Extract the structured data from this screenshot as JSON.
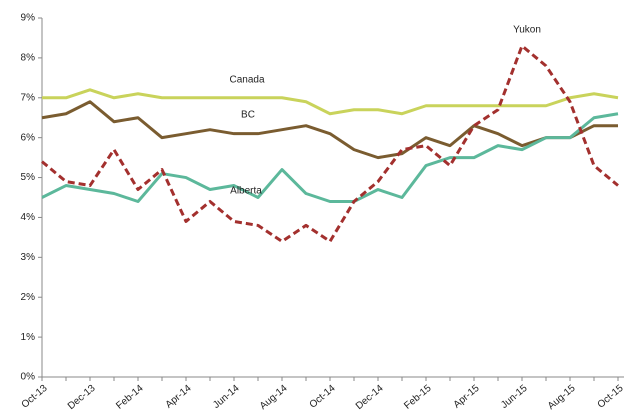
{
  "chart_data": {
    "type": "line",
    "categories": [
      "Oct-13",
      null,
      "Dec-13",
      null,
      "Feb-14",
      null,
      "Apr-14",
      null,
      "Jun-14",
      null,
      "Aug-14",
      null,
      "Oct-14",
      null,
      "Dec-14",
      null,
      "Feb-15",
      null,
      "Apr-15",
      null,
      "Jun-15",
      null,
      "Aug-15",
      null,
      "Oct-15"
    ],
    "ylim": [
      0,
      9
    ],
    "yticks": [
      {
        "value": 0,
        "label": "0%"
      },
      {
        "value": 1,
        "label": "1%"
      },
      {
        "value": 2,
        "label": "2%"
      },
      {
        "value": 3,
        "label": "3%"
      },
      {
        "value": 4,
        "label": "4%"
      },
      {
        "value": 5,
        "label": "5%"
      },
      {
        "value": 6,
        "label": "6%"
      },
      {
        "value": 7,
        "label": "7%"
      },
      {
        "value": 8,
        "label": "8%"
      },
      {
        "value": 9,
        "label": "9%"
      }
    ],
    "grid": false,
    "series": [
      {
        "name": "Canada",
        "color": "#c9d35b",
        "dashed": false,
        "values": [
          7.0,
          7.0,
          7.2,
          7.0,
          7.1,
          7.0,
          7.0,
          7.0,
          7.0,
          7.0,
          7.0,
          6.9,
          6.6,
          6.7,
          6.7,
          6.6,
          6.8,
          6.8,
          6.8,
          6.8,
          6.8,
          6.8,
          7.0,
          7.1,
          7.0
        ]
      },
      {
        "name": "BC",
        "color": "#7a5c30",
        "dashed": false,
        "values": [
          6.5,
          6.6,
          6.9,
          6.4,
          6.5,
          6.0,
          6.1,
          6.2,
          6.1,
          6.1,
          6.2,
          6.3,
          6.1,
          5.7,
          5.5,
          5.6,
          6.0,
          5.8,
          6.3,
          6.1,
          5.8,
          6.0,
          6.0,
          6.3,
          6.3
        ]
      },
      {
        "name": "Alberta",
        "color": "#5cb89b",
        "dashed": false,
        "values": [
          4.5,
          4.8,
          4.7,
          4.6,
          4.4,
          5.1,
          5.0,
          4.7,
          4.8,
          4.5,
          5.2,
          4.6,
          4.4,
          4.4,
          4.7,
          4.5,
          5.3,
          5.5,
          5.5,
          5.8,
          5.7,
          6.0,
          6.0,
          6.5,
          6.6
        ]
      },
      {
        "name": "Yukon",
        "color": "#a3302e",
        "dashed": true,
        "values": [
          5.4,
          4.9,
          4.8,
          5.7,
          4.7,
          5.2,
          3.9,
          4.4,
          3.9,
          3.8,
          3.4,
          3.8,
          3.4,
          4.4,
          4.9,
          5.7,
          5.8,
          5.3,
          6.3,
          6.7,
          8.3,
          7.8,
          6.9,
          5.3,
          4.8
        ]
      }
    ]
  }
}
